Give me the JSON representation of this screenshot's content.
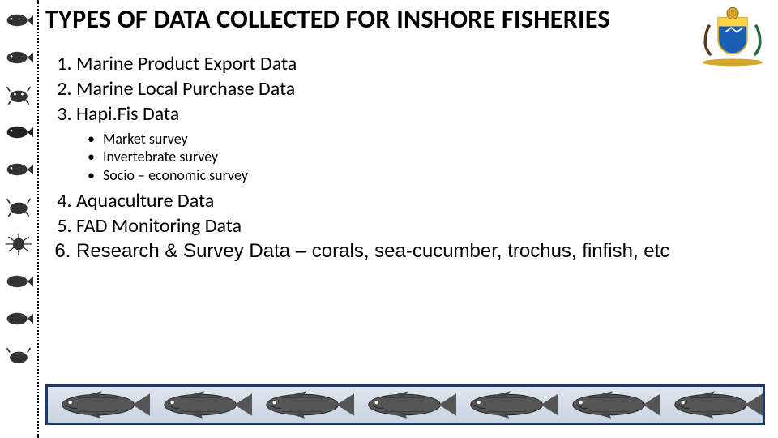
{
  "title": "TYPES OF DATA COLLECTED FOR INSHORE FISHERIES",
  "list": {
    "i1": "Marine  Product Export Data",
    "i2": "Marine Local Purchase Data",
    "i3": "Hapi.Fis Data",
    "i3_sub": {
      "a": "Market survey",
      "b": "Invertebrate survey",
      "c": "Socio – economic survey"
    },
    "i4": "Aquaculture Data",
    "i5": "FAD Monitoring Data",
    "i6": "Research & Survey Data – corals, sea-cucumber, trochus, finfish, etc"
  },
  "colors": {
    "frame_border": "#1b3a6a",
    "frame_bg_top": "#dfe6ee",
    "frame_bg_bottom": "#c9d4e2",
    "crest_gold": "#d4a62a",
    "crest_blue": "#1a5fb4",
    "crest_red": "#c0392b",
    "icon_gray": "#444444"
  },
  "side_icons": [
    "fish-icon",
    "fish-icon",
    "crab-icon",
    "fish-icon",
    "fish-icon",
    "crab-icon",
    "urchin-icon",
    "fish-icon",
    "fish-icon",
    "crab-icon"
  ],
  "bottom_fish_count": 7
}
